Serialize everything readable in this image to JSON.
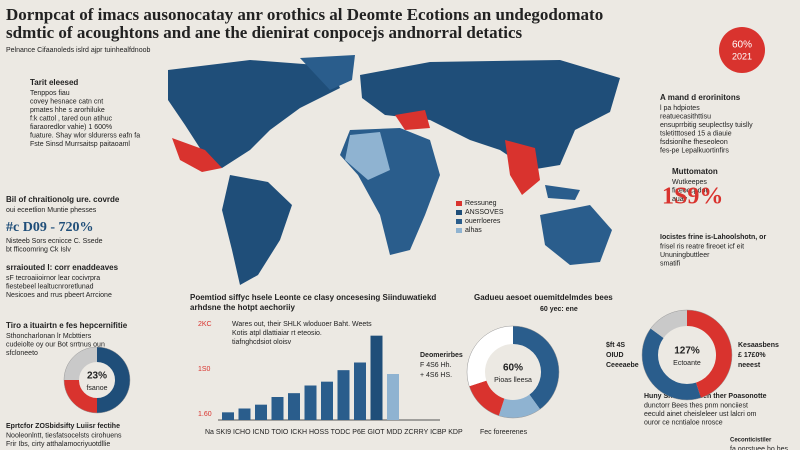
{
  "header": {
    "title_lines": [
      "Dornpcat of imacs ausonocatay anr orothics al Deomte Ecotions an undegodomato",
      "sdmtic of acoughtons and ane the dienirat conpocejs andnorral detatics"
    ],
    "subtitle": "Pelnance Cifaanoleds islrd ajpr tuinhealfdnoob",
    "badge": [
      "60%",
      "2021"
    ]
  },
  "blocks": [
    {
      "title": "Tarit eleesed",
      "lines": [
        "Tenppos fiau",
        "covey hesnace catn cnt",
        "pmates hhe s arorhiluke",
        "f:k cattol , tared oun atihuc",
        "fiaraoredlor vahie) 1 600%",
        "fuature. Shay wlor sldurerss eafn fa",
        "Fste Sinsd Murrsaitsp paitaoaml"
      ]
    },
    {
      "title": "Bil of chraitionolg ure. covrde",
      "lines": [
        "oui eceetlion Muntie phesses"
      ]
    },
    {
      "title": "#c D09 - 720%",
      "lines": [
        "Nisteeb Sors ecnicce C. Ssede",
        "bt fficoomring Ck Islv"
      ]
    },
    {
      "title": "srraiouted l: corr enaddeaves",
      "lines": [
        "sF tecroaiioirnor lear cocivrpra",
        "fiestebeel lealtucnroretlunad",
        "Nesicoes and rrus pbeert Arrcione"
      ]
    },
    {
      "title": "Tiro a ituairtn e fes hepcernifitie",
      "lines": [
        "Sthoncharlonan lr Mcbttiers",
        "cudeiolte oy our Bot srrtnus oun",
        "sfcloneeto"
      ]
    },
    {
      "title": "Eprtcfor ZOSbidsifty Luiisr fectihe",
      "lines": [
        "Nooleonlntt, tiesfatsocelsts cirohuens",
        "Frir Ibs, cirty atthalamocriyuotdllie"
      ]
    },
    {
      "title": "A mand d erorinitons",
      "lines": [
        "l pa hdpiotes",
        "reatuecasithttisu",
        "ensuprrbitig seuplectlsy tuislly",
        "tsletitttosed 15 a diauie",
        "fsdsionlhe fheseoleon",
        "fes-pe Lepalkuortinfirs"
      ]
    },
    {
      "title": "Muttomaton",
      "lines": [
        "Wutkeepes",
        "ficeoccpdot",
        "auay"
      ]
    },
    {
      "title": "1S9%",
      "lines": []
    },
    {
      "title": "Iocistes frine is-Lahoolshotn, or",
      "lines": [
        "frisel ris reatre fireoet icf eit",
        "Ununingbuttleer",
        "smatifi"
      ]
    },
    {
      "title": "Huny Shatonbliccen ther Poasonotte",
      "lines": [
        "dunctorr Bees thes pnm nonciiest",
        "eeculd ainet cheisleleer ust lalcri om",
        "ouror ce ncntialoe nrosce"
      ]
    },
    {
      "title": "Ceconticistiler",
      "lines": [
        "fa oorstuee ho hes"
      ]
    }
  ],
  "map_legend": [
    "Ressuneg",
    "ANSSOVES",
    "ouerrloeres",
    "alhas"
  ],
  "bar_chart": {
    "title_lines": [
      "Poemtiod siffyc hsele Leonte ce clasy oncesesing Siinduwatiekd",
      "arhdsne the hotpt aechoriiy"
    ],
    "note_lines": [
      "Wares out, their SHLK wloduoer Baht. Weets",
      "Kotis atpl dlattiaiar rt eteosio.",
      "tiafnghcdsiot oloisv"
    ],
    "axis_labels": [
      "2KC",
      "1S0",
      "1.60"
    ],
    "x_caption": "Na SKI9 ICHO ICND TOIO ICKH HOSS TODC P6E GIOT MDD ZCRRY ICBP KDP",
    "side_lines": [
      "Deomerirbes",
      "F 4S6 Hh.",
      "+ 4S6 HS."
    ],
    "values": [
      1,
      1.5,
      2,
      3,
      3.5,
      4.5,
      5,
      6.5,
      7.5,
      11,
      6
    ],
    "colors": [
      "#2a5d8c",
      "#2a5d8c",
      "#2a5d8c",
      "#2a5d8c",
      "#2a5d8c",
      "#2a5d8c",
      "#2a5d8c",
      "#2a5d8c",
      "#2a5d8c",
      "#1f4e79",
      "#8fb3d1"
    ],
    "ymax": 12
  },
  "donuts": [
    {
      "center": "23%",
      "sub": "fsanoe",
      "values": [
        50,
        25,
        25
      ],
      "colors": [
        "#1f4e79",
        "#d9332e",
        "#c9c9c9"
      ]
    },
    {
      "title": "Gadueu aesoet ouemitdelmdes bees",
      "subtitle": "60 yec: ene",
      "center": "60%",
      "sub": "Pioas lleesa",
      "footer": "Fec foreerenes",
      "values": [
        40,
        15,
        15,
        30
      ],
      "colors": [
        "#2a5d8c",
        "#8fb3d1",
        "#d9332e",
        "#ffffff"
      ]
    },
    {
      "center": "127%",
      "sub": "Ectoante",
      "left": [
        "$ft 4S",
        "OIUD",
        "Ceeeaebe"
      ],
      "right": [
        "Kesaasbens",
        "£ 17£0%",
        "neeest"
      ],
      "values": [
        45,
        40,
        15
      ],
      "colors": [
        "#d9332e",
        "#2a5d8c",
        "#c9c9c9"
      ]
    }
  ]
}
